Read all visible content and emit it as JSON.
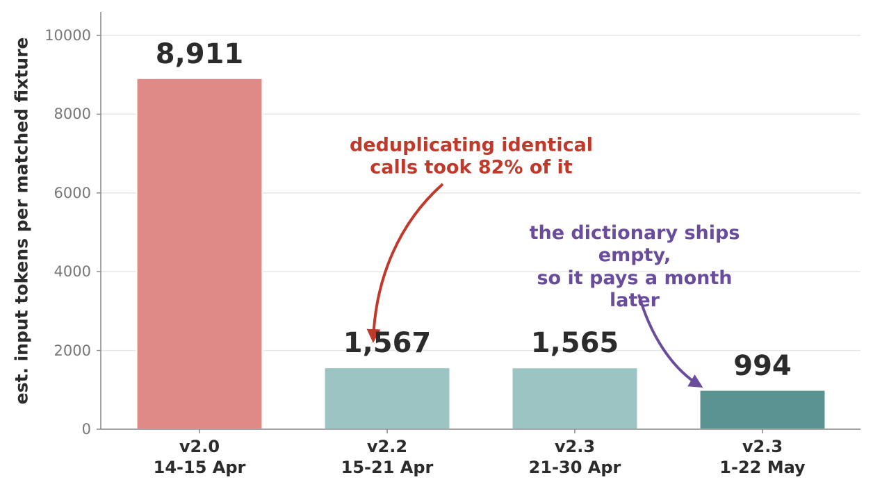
{
  "chart_data": {
    "type": "bar",
    "y_label": "est. input tokens per matched fixture",
    "categories": [
      "v2.0\n14-15 Apr",
      "v2.2\n15-21 Apr",
      "v2.3\n21-30 Apr",
      "v2.3\n1-22 May"
    ],
    "values": [
      8911,
      1567,
      1565,
      994
    ],
    "value_labels": [
      "8,911",
      "1,567",
      "1,565",
      "994"
    ],
    "colors": [
      "#e08a87",
      "#9cc4c3",
      "#9cc4c3",
      "#5b9392"
    ],
    "ylim": [
      0,
      10600
    ],
    "yticks": [
      0,
      2000,
      4000,
      6000,
      8000,
      10000
    ],
    "grid": true,
    "annotations": [
      {
        "text": "deduplicating identical\ncalls took 82% of it",
        "color": "#c0392b"
      },
      {
        "text": "the dictionary ships empty,\nso it pays a month later",
        "color": "#6a4c9c"
      }
    ]
  }
}
